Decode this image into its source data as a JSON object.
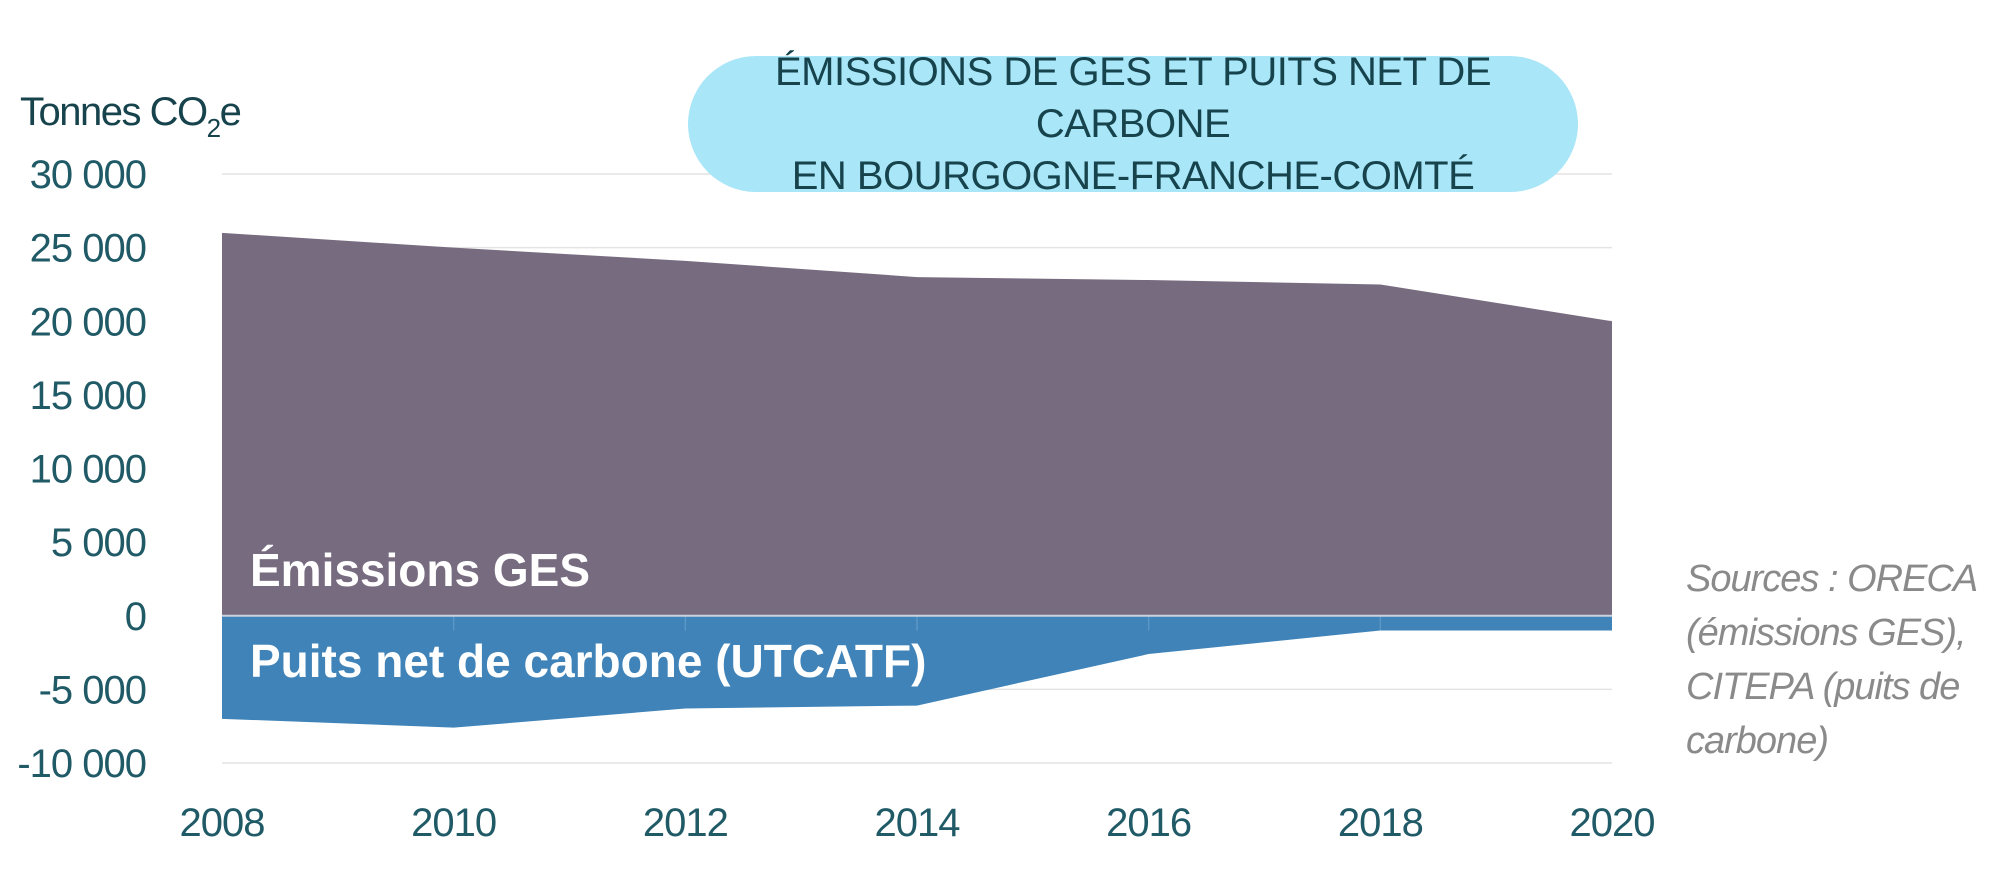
{
  "chart_data": {
    "type": "area",
    "title_line1": "ÉMISSIONS DE GES ET PUITS NET DE CARBONE",
    "title_line2": "EN BOURGOGNE-FRANCHE-COMTÉ",
    "ylabel": "Tonnes CO",
    "ylabel_subscript": "2",
    "ylabel_suffix": "e",
    "x": [
      2008,
      2010,
      2012,
      2014,
      2016,
      2018,
      2020
    ],
    "ylim": [
      -10000,
      30000
    ],
    "y_ticks": [
      "30 000",
      "25 000",
      "20 000",
      "15 000",
      "10 000",
      "5 000",
      "0",
      "-5 000",
      "-10 000"
    ],
    "grid": true,
    "series": [
      {
        "name": "Émissions GES",
        "x": [
          2008,
          2010,
          2012,
          2014,
          2016,
          2018,
          2020
        ],
        "values": [
          26000,
          25000,
          24100,
          23000,
          22800,
          22500,
          20000
        ],
        "color": "#776b80"
      },
      {
        "name": "Puits net de carbone (UTCATF)",
        "x": [
          2008,
          2010,
          2012,
          2014,
          2016,
          2018,
          2020
        ],
        "values": [
          -7000,
          -7600,
          -6300,
          -6100,
          -2600,
          -1000,
          -1000
        ],
        "color": "#3f83b8"
      }
    ]
  },
  "source_note": "Sources : ORECA (émissions GES), CITEPA (puits de carbone)",
  "colors": {
    "axis_text": "#1f5a66",
    "title_bg": "#a8e6f8",
    "grid": "#e4e4e4",
    "source_text": "#8a8a8a"
  }
}
